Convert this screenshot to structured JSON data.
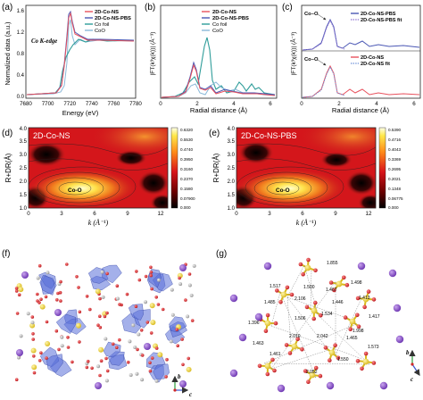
{
  "panels": {
    "a": {
      "label": "(a)",
      "edge_label": "Co K-edge",
      "ylabel": "Normalized data (a.u.)",
      "xlabel": "Energy (eV)",
      "xticks": [
        "7680",
        "7700",
        "7720",
        "7740",
        "7760",
        "7780"
      ],
      "yticks": [
        "0.0",
        "0.4",
        "0.8",
        "1.2",
        "1.6"
      ],
      "legend": [
        "2D-Co-NS",
        "2D-Co-NS-PBS",
        "Co foil",
        "CoO"
      ]
    },
    "b": {
      "label": "(b)",
      "ylabel": "|FT(k³χ(k))| (Å⁻³)",
      "xlabel": "Radial distance (Å)",
      "xticks": [
        "0",
        "2",
        "4",
        "6"
      ],
      "legend": [
        "2D-Co-NS",
        "2D-Co-NS-PBS",
        "Co foil",
        "CoO"
      ]
    },
    "c": {
      "label": "(c)",
      "ylabel": "|FT(k³χ(k))| (Å⁻³)",
      "xlabel": "Radial distance (Å)",
      "xticks": [
        "0",
        "2",
        "4",
        "6"
      ],
      "top_annotation": "Co–O",
      "bottom_annotation": "Co–O",
      "top_legend": [
        "2D-Co-NS-PBS",
        "2D-Co-NS-PBS fit"
      ],
      "bottom_legend": [
        "2D-Co-NS",
        "2D-Co-NS fit"
      ]
    },
    "d": {
      "label": "(d)",
      "title": "2D-Co-NS",
      "annotation": "Co-O",
      "ylabel": "R+DR(Å)",
      "xlabel": "k (Å⁻¹)",
      "xticks": [
        "0",
        "3",
        "6",
        "9",
        "12"
      ],
      "yticks": [
        "1.0",
        "1.5",
        "2.0",
        "2.5",
        "3.0",
        "3.5",
        "4.0"
      ],
      "colorbar": [
        "0.6320",
        "0.5530",
        "0.4740",
        "0.3950",
        "0.3160",
        "0.2370",
        "0.1580",
        "0.07900",
        "0.000"
      ]
    },
    "e": {
      "label": "(e)",
      "title": "2D-Co-NS-PBS",
      "annotation": "Co-O",
      "ylabel": "R+DR(Å)",
      "xlabel": "k (Å⁻¹)",
      "xticks": [
        "0",
        "3",
        "6",
        "9",
        "12"
      ],
      "yticks": [
        "1.0",
        "1.5",
        "2.0",
        "2.5",
        "3.0",
        "3.5",
        "4.0"
      ],
      "colorbar": [
        "0.5390",
        "0.4716",
        "0.4043",
        "0.3369",
        "0.2695",
        "0.2021",
        "0.1348",
        "0.06775",
        "0.000"
      ]
    },
    "f": {
      "label": "(f)",
      "axis_b": "b",
      "axis_c": "c"
    },
    "g": {
      "label": "(g)",
      "axis_b": "b",
      "axis_c": "c",
      "distances": [
        "1.855",
        "1.517",
        "1.467",
        "1.485",
        "2.106",
        "1.446",
        "1.413",
        "1.534",
        "1.417",
        "1.396",
        "1.506",
        "2.042",
        "1.998",
        "1.463",
        "1.573",
        "1.461",
        "2.052",
        "1.550",
        "1.465",
        "2.010",
        "1.500",
        "1.498"
      ]
    }
  },
  "colors": {
    "ns": "#e8515d",
    "pbs": "#4a57b4",
    "foil": "#2f9d9a",
    "coo": "#8ab8d8",
    "polyhedra": "#5a6fd8",
    "phosphorus": "#e6cf2a",
    "cobalt_atom": "#8a4ccf",
    "oxygen": "#d9242a"
  }
}
